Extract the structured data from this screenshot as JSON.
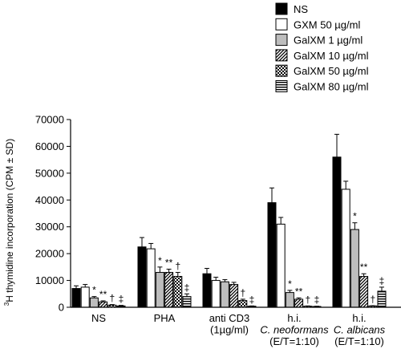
{
  "chart_data": {
    "type": "bar",
    "ylabel_sup": "3",
    "ylabel_main": "H thymidine incorporation (CPM ± SD)",
    "ylim": [
      0,
      70000
    ],
    "yticks": [
      0,
      10000,
      20000,
      30000,
      40000,
      50000,
      60000,
      70000
    ],
    "ytick_labels": [
      "0",
      "10000",
      "20000",
      "30000",
      "40000",
      "50000",
      "60000",
      "70000"
    ],
    "grid": false,
    "legend_position": "top-right",
    "groups": [
      {
        "lines": [
          {
            "text": "NS",
            "italic": false
          }
        ]
      },
      {
        "lines": [
          {
            "text": "PHA",
            "italic": false
          }
        ]
      },
      {
        "lines": [
          {
            "text": "anti CD3",
            "italic": false
          },
          {
            "text": "(1µg/ml)",
            "italic": false
          }
        ]
      },
      {
        "lines": [
          {
            "text": "h.i.",
            "italic": false
          },
          {
            "text": "C. neoformans",
            "italic": true
          },
          {
            "text": "(E/T=1:10)",
            "italic": false
          }
        ]
      },
      {
        "lines": [
          {
            "text": "h.i.",
            "italic": false
          },
          {
            "text": "C. albicans",
            "italic": true
          },
          {
            "text": "(E/T=1:10)",
            "italic": false
          }
        ]
      }
    ],
    "series": [
      {
        "name": "NS",
        "pattern": "black",
        "values": [
          7000,
          22500,
          12500,
          39000,
          56000
        ],
        "errors": [
          1000,
          3500,
          2000,
          5500,
          8500
        ]
      },
      {
        "name": "GXM 50 µg/ml",
        "pattern": "white",
        "values": [
          7500,
          21800,
          10000,
          31000,
          44000
        ],
        "errors": [
          1000,
          2000,
          1200,
          2500,
          3000
        ]
      },
      {
        "name": "GalXM 1 µg/ml",
        "pattern": "gray",
        "values": [
          3500,
          13000,
          9500,
          5500,
          29000
        ],
        "errors": [
          500,
          2000,
          800,
          800,
          2500
        ]
      },
      {
        "name": "GalXM 10 µg/ml",
        "pattern": "diagonal",
        "values": [
          2000,
          13000,
          8500,
          3000,
          11500
        ],
        "errors": [
          400,
          1200,
          800,
          500,
          1000
        ]
      },
      {
        "name": "GalXM 50 µg/ml",
        "pattern": "checker",
        "values": [
          800,
          11500,
          2500,
          400,
          500
        ],
        "errors": [
          200,
          1500,
          500,
          100,
          100
        ]
      },
      {
        "name": "GalXM 80 µg/ml",
        "pattern": "horizontal",
        "values": [
          500,
          4000,
          400,
          300,
          6000
        ],
        "errors": [
          200,
          1000,
          100,
          100,
          1500
        ]
      }
    ],
    "annotations": [
      {
        "group": 0,
        "series": 2,
        "text": "*"
      },
      {
        "group": 0,
        "series": 3,
        "text": "**"
      },
      {
        "group": 0,
        "series": 4,
        "text": "†"
      },
      {
        "group": 0,
        "series": 5,
        "text": "‡"
      },
      {
        "group": 1,
        "series": 2,
        "text": "*"
      },
      {
        "group": 1,
        "series": 3,
        "text": "**"
      },
      {
        "group": 1,
        "series": 4,
        "text": "†"
      },
      {
        "group": 1,
        "series": 5,
        "text": "‡"
      },
      {
        "group": 2,
        "series": 4,
        "text": "†"
      },
      {
        "group": 2,
        "series": 5,
        "text": "‡"
      },
      {
        "group": 3,
        "series": 2,
        "text": "*"
      },
      {
        "group": 3,
        "series": 3,
        "text": "**"
      },
      {
        "group": 3,
        "series": 4,
        "text": "†"
      },
      {
        "group": 3,
        "series": 5,
        "text": "‡"
      },
      {
        "group": 4,
        "series": 2,
        "text": "*"
      },
      {
        "group": 4,
        "series": 3,
        "text": "**"
      },
      {
        "group": 4,
        "series": 4,
        "text": "†"
      },
      {
        "group": 4,
        "series": 5,
        "text": "‡"
      }
    ]
  }
}
